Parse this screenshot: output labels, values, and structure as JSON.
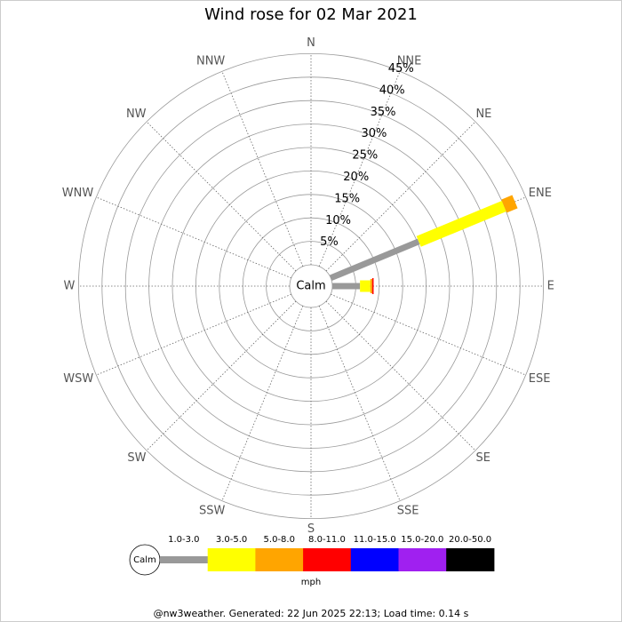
{
  "chart_data": {
    "type": "wind_rose",
    "title": "Wind rose for 02 Mar 2021",
    "directions": [
      "N",
      "NNE",
      "NE",
      "ENE",
      "E",
      "ESE",
      "SE",
      "SSE",
      "S",
      "SSW",
      "SW",
      "WSW",
      "W",
      "WNW",
      "NW",
      "NNW"
    ],
    "calm_label": "Calm",
    "rlim": [
      0,
      45
    ],
    "rticks": [
      {
        "value": 5,
        "label": "5%"
      },
      {
        "value": 10,
        "label": "10%"
      },
      {
        "value": 15,
        "label": "15%"
      },
      {
        "value": 20,
        "label": "20%"
      },
      {
        "value": 25,
        "label": "25%"
      },
      {
        "value": 30,
        "label": "30%"
      },
      {
        "value": 35,
        "label": "35%"
      },
      {
        "value": 40,
        "label": "40%"
      },
      {
        "value": 45,
        "label": "45%"
      }
    ],
    "series": [
      {
        "name": "1.0-3.0",
        "color": "#999999",
        "values": [
          0,
          0,
          0,
          20.3,
          5.9,
          0,
          0,
          0,
          0,
          0,
          0,
          0,
          0,
          0,
          0,
          0
        ]
      },
      {
        "name": "3.0-5.0",
        "color": "#ffff00",
        "values": [
          0,
          0,
          0,
          19.7,
          2.2,
          0,
          0,
          0,
          0,
          0,
          0,
          0,
          0,
          0,
          0,
          0
        ]
      },
      {
        "name": "5.0-8.0",
        "color": "#ffa500",
        "values": [
          0,
          0,
          0,
          2.5,
          0.4,
          0,
          0,
          0,
          0,
          0,
          0,
          0,
          0,
          0,
          0,
          0
        ]
      },
      {
        "name": "8.0-11.0",
        "color": "#ff0000",
        "values": [
          0,
          0,
          0,
          0,
          0.3,
          0,
          0,
          0,
          0,
          0,
          0,
          0,
          0,
          0,
          0,
          0
        ]
      },
      {
        "name": "11.0-15.0",
        "color": "#0000ff",
        "values": [
          0,
          0,
          0,
          0,
          0,
          0,
          0,
          0,
          0,
          0,
          0,
          0,
          0,
          0,
          0,
          0
        ]
      },
      {
        "name": "15.0-20.0",
        "color": "#a020f0",
        "values": [
          0,
          0,
          0,
          0,
          0,
          0,
          0,
          0,
          0,
          0,
          0,
          0,
          0,
          0,
          0,
          0
        ]
      },
      {
        "name": "20.0-50.0",
        "color": "#000000",
        "values": [
          0,
          0,
          0,
          0,
          0,
          0,
          0,
          0,
          0,
          0,
          0,
          0,
          0,
          0,
          0,
          0
        ]
      }
    ],
    "legend_unit": "mph"
  },
  "footer": "@nw3weather. Generated: 22 Jun 2025 22:13; Load time: 0.14 s"
}
